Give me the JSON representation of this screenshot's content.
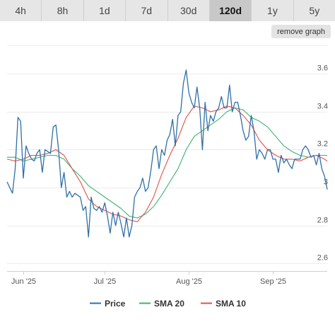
{
  "tabs": [
    {
      "label": "4h",
      "active": false
    },
    {
      "label": "8h",
      "active": false
    },
    {
      "label": "1d",
      "active": false
    },
    {
      "label": "7d",
      "active": false
    },
    {
      "label": "30d",
      "active": false
    },
    {
      "label": "120d",
      "active": true
    },
    {
      "label": "1y",
      "active": false
    },
    {
      "label": "5y",
      "active": false
    }
  ],
  "remove_graph_label": "remove graph",
  "chart_data": {
    "type": "line",
    "x_ticks": [
      {
        "label": "Jun '25",
        "day": 6
      },
      {
        "label": "Jul '25",
        "day": 36
      },
      {
        "label": "Aug '25",
        "day": 67
      },
      {
        "label": "Sep '25",
        "day": 98
      }
    ],
    "x_range": [
      0,
      118
    ],
    "y_ticks": [
      {
        "label": "2.6",
        "value": 2.6
      },
      {
        "label": "2.8",
        "value": 2.8
      },
      {
        "label": "3",
        "value": 3.0
      },
      {
        "label": "3.2",
        "value": 3.2
      },
      {
        "label": "3.4",
        "value": 3.4
      },
      {
        "label": "3.6",
        "value": 3.6
      }
    ],
    "ylim": [
      2.56,
      3.78
    ],
    "grid": true,
    "legend_position": "bottom",
    "series": [
      {
        "name": "Price",
        "color": "#2f6fa7",
        "points": [
          [
            0,
            3.03
          ],
          [
            1,
            3.0
          ],
          [
            2,
            2.97
          ],
          [
            3,
            3.1
          ],
          [
            4,
            3.37
          ],
          [
            5,
            3.35
          ],
          [
            6,
            3.05
          ],
          [
            7,
            3.22
          ],
          [
            8,
            3.18
          ],
          [
            9,
            3.15
          ],
          [
            10,
            3.14
          ],
          [
            11,
            3.18
          ],
          [
            12,
            3.2
          ],
          [
            13,
            3.08
          ],
          [
            14,
            3.2
          ],
          [
            15,
            3.19
          ],
          [
            16,
            3.18
          ],
          [
            17,
            3.32
          ],
          [
            18,
            3.33
          ],
          [
            19,
            3.2
          ],
          [
            20,
            3.0
          ],
          [
            21,
            3.08
          ],
          [
            22,
            2.95
          ],
          [
            23,
            2.98
          ],
          [
            24,
            2.95
          ],
          [
            25,
            2.97
          ],
          [
            26,
            2.96
          ],
          [
            27,
            2.95
          ],
          [
            28,
            2.88
          ],
          [
            29,
            2.9
          ],
          [
            30,
            2.74
          ],
          [
            31,
            2.95
          ],
          [
            32,
            2.89
          ],
          [
            33,
            2.88
          ],
          [
            34,
            2.9
          ],
          [
            35,
            2.87
          ],
          [
            36,
            2.92
          ],
          [
            37,
            2.85
          ],
          [
            38,
            2.76
          ],
          [
            39,
            2.87
          ],
          [
            40,
            2.8
          ],
          [
            41,
            2.87
          ],
          [
            42,
            2.81
          ],
          [
            43,
            2.74
          ],
          [
            44,
            2.84
          ],
          [
            45,
            2.74
          ],
          [
            46,
            2.8
          ],
          [
            47,
            2.95
          ],
          [
            48,
            2.98
          ],
          [
            49,
            3.0
          ],
          [
            50,
            3.05
          ],
          [
            51,
            2.98
          ],
          [
            52,
            3.0
          ],
          [
            53,
            3.09
          ],
          [
            54,
            3.2
          ],
          [
            55,
            3.22
          ],
          [
            56,
            3.1
          ],
          [
            57,
            3.2
          ],
          [
            58,
            3.17
          ],
          [
            59,
            3.25
          ],
          [
            60,
            3.28
          ],
          [
            61,
            3.36
          ],
          [
            62,
            3.22
          ],
          [
            63,
            3.38
          ],
          [
            64,
            3.4
          ],
          [
            65,
            3.55
          ],
          [
            66,
            3.62
          ],
          [
            67,
            3.5
          ],
          [
            68,
            3.45
          ],
          [
            69,
            3.42
          ],
          [
            70,
            3.53
          ],
          [
            71,
            3.42
          ],
          [
            72,
            3.2
          ],
          [
            73,
            3.45
          ],
          [
            74,
            3.3
          ],
          [
            75,
            3.38
          ],
          [
            76,
            3.35
          ],
          [
            77,
            3.4
          ],
          [
            78,
            3.42
          ],
          [
            79,
            3.48
          ],
          [
            80,
            3.42
          ],
          [
            81,
            3.42
          ],
          [
            82,
            3.54
          ],
          [
            83,
            3.4
          ],
          [
            84,
            3.45
          ],
          [
            85,
            3.45
          ],
          [
            86,
            3.38
          ],
          [
            87,
            3.3
          ],
          [
            88,
            3.25
          ],
          [
            89,
            3.27
          ],
          [
            90,
            3.38
          ],
          [
            91,
            3.3
          ],
          [
            92,
            3.15
          ],
          [
            93,
            3.2
          ],
          [
            94,
            3.18
          ],
          [
            95,
            3.15
          ],
          [
            96,
            3.2
          ],
          [
            97,
            3.2
          ],
          [
            98,
            3.15
          ],
          [
            99,
            3.15
          ],
          [
            100,
            3.08
          ],
          [
            101,
            3.17
          ],
          [
            102,
            3.13
          ],
          [
            103,
            3.15
          ],
          [
            104,
            3.12
          ],
          [
            105,
            3.1
          ],
          [
            106,
            3.15
          ],
          [
            107,
            3.15
          ],
          [
            108,
            3.15
          ],
          [
            109,
            3.2
          ],
          [
            110,
            3.22
          ],
          [
            111,
            3.2
          ],
          [
            112,
            3.16
          ],
          [
            113,
            3.17
          ],
          [
            114,
            3.12
          ],
          [
            115,
            3.18
          ],
          [
            116,
            3.1
          ],
          [
            117,
            3.06
          ],
          [
            118,
            2.99
          ]
        ]
      },
      {
        "name": "SMA 20",
        "color": "#3cb371",
        "points": [
          [
            0,
            3.16
          ],
          [
            3,
            3.16
          ],
          [
            6,
            3.14
          ],
          [
            9,
            3.15
          ],
          [
            12,
            3.16
          ],
          [
            15,
            3.17
          ],
          [
            18,
            3.17
          ],
          [
            21,
            3.15
          ],
          [
            24,
            3.1
          ],
          [
            27,
            3.06
          ],
          [
            30,
            3.01
          ],
          [
            33,
            2.98
          ],
          [
            36,
            2.95
          ],
          [
            39,
            2.92
          ],
          [
            42,
            2.89
          ],
          [
            45,
            2.85
          ],
          [
            48,
            2.84
          ],
          [
            51,
            2.86
          ],
          [
            54,
            2.9
          ],
          [
            57,
            2.96
          ],
          [
            60,
            3.03
          ],
          [
            63,
            3.1
          ],
          [
            66,
            3.2
          ],
          [
            69,
            3.27
          ],
          [
            72,
            3.3
          ],
          [
            75,
            3.33
          ],
          [
            78,
            3.36
          ],
          [
            81,
            3.4
          ],
          [
            84,
            3.42
          ],
          [
            87,
            3.41
          ],
          [
            90,
            3.37
          ],
          [
            93,
            3.35
          ],
          [
            96,
            3.32
          ],
          [
            99,
            3.27
          ],
          [
            102,
            3.22
          ],
          [
            105,
            3.19
          ],
          [
            108,
            3.17
          ],
          [
            111,
            3.16
          ],
          [
            114,
            3.17
          ],
          [
            117,
            3.17
          ],
          [
            118,
            3.17
          ]
        ]
      },
      {
        "name": "SMA 10",
        "color": "#e2504a",
        "points": [
          [
            0,
            3.15
          ],
          [
            3,
            3.14
          ],
          [
            6,
            3.15
          ],
          [
            9,
            3.17
          ],
          [
            12,
            3.17
          ],
          [
            15,
            3.18
          ],
          [
            18,
            3.2
          ],
          [
            21,
            3.17
          ],
          [
            24,
            3.1
          ],
          [
            27,
            3.03
          ],
          [
            30,
            2.94
          ],
          [
            33,
            2.9
          ],
          [
            36,
            2.88
          ],
          [
            39,
            2.86
          ],
          [
            42,
            2.85
          ],
          [
            45,
            2.83
          ],
          [
            48,
            2.82
          ],
          [
            51,
            2.87
          ],
          [
            54,
            2.95
          ],
          [
            57,
            3.07
          ],
          [
            60,
            3.17
          ],
          [
            63,
            3.26
          ],
          [
            66,
            3.37
          ],
          [
            69,
            3.43
          ],
          [
            72,
            3.42
          ],
          [
            75,
            3.4
          ],
          [
            78,
            3.41
          ],
          [
            81,
            3.43
          ],
          [
            84,
            3.42
          ],
          [
            87,
            3.38
          ],
          [
            90,
            3.33
          ],
          [
            93,
            3.25
          ],
          [
            96,
            3.2
          ],
          [
            99,
            3.17
          ],
          [
            102,
            3.15
          ],
          [
            105,
            3.15
          ],
          [
            108,
            3.14
          ],
          [
            111,
            3.16
          ],
          [
            114,
            3.17
          ],
          [
            117,
            3.15
          ],
          [
            118,
            3.14
          ]
        ]
      }
    ]
  }
}
